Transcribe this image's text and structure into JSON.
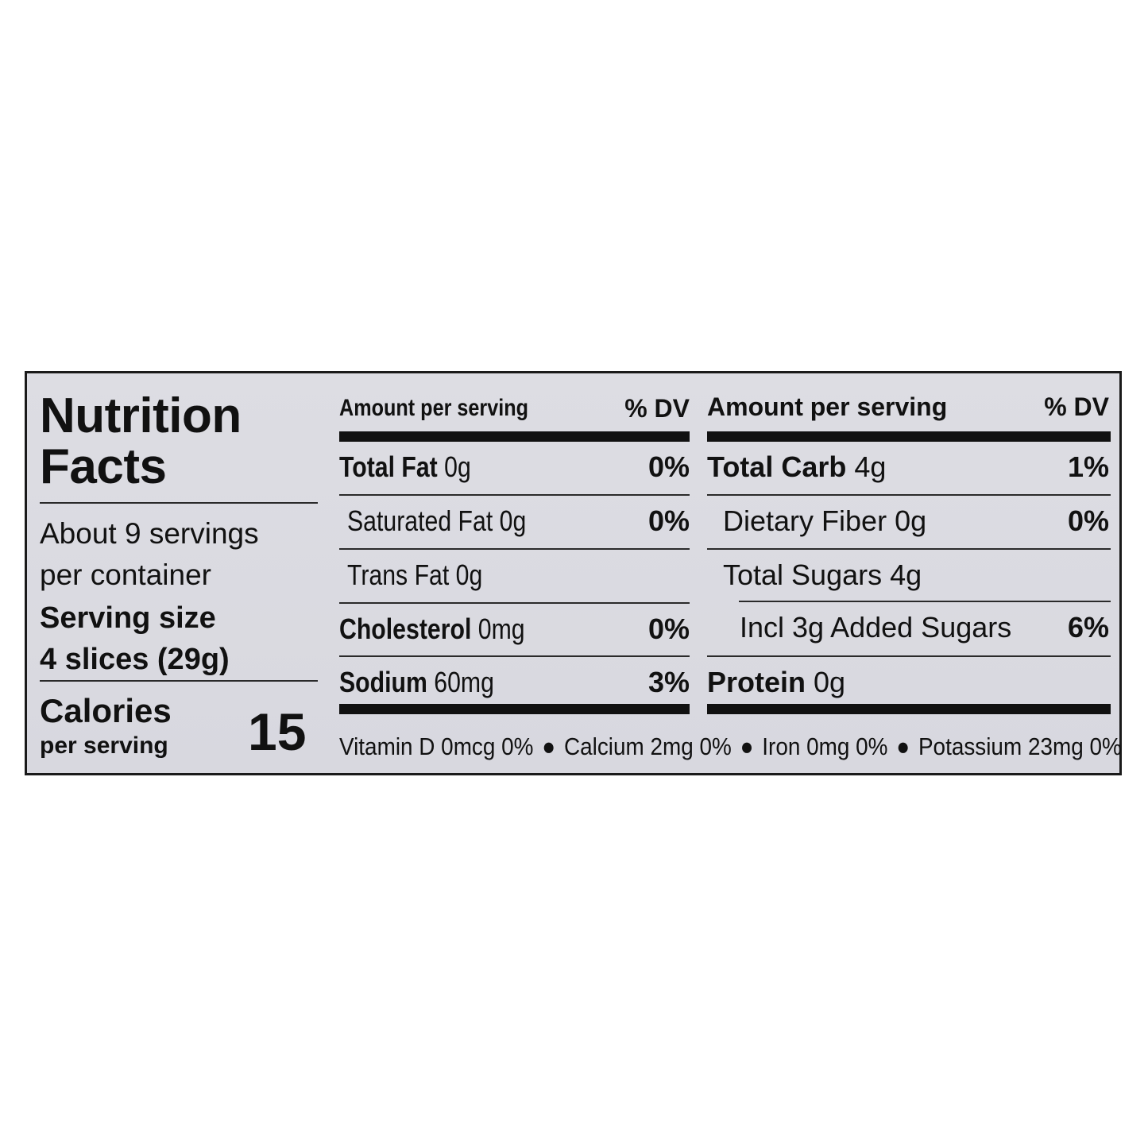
{
  "title": {
    "line1": "Nutrition",
    "line2": "Facts"
  },
  "servings": {
    "line1": "About 9 servings",
    "line2": "per container"
  },
  "serving_size": {
    "line1": "Serving size",
    "line2": "4 slices (29g)"
  },
  "calories": {
    "label": "Calories",
    "sub": "per serving",
    "value": "15"
  },
  "left_column": {
    "header_amount": "Amount per serving",
    "header_dv": "% DV",
    "rows": [
      {
        "name": "Total Fat",
        "amount": "0g",
        "dv": "0%"
      },
      {
        "name": "Saturated Fat",
        "amount": "0g",
        "dv": "0%"
      },
      {
        "name": "Trans Fat",
        "amount": "0g",
        "dv": ""
      },
      {
        "name": "Cholesterol",
        "amount": "0mg",
        "dv": "0%"
      },
      {
        "name": "Sodium",
        "amount": "60mg",
        "dv": "3%"
      }
    ]
  },
  "right_column": {
    "header_amount": "Amount per serving",
    "header_dv": "% DV",
    "rows": [
      {
        "name": "Total Carb",
        "amount": "4g",
        "dv": "1%"
      },
      {
        "name": "Dietary Fiber",
        "amount": "0g",
        "dv": "0%"
      },
      {
        "name": "Total Sugars",
        "amount": "4g",
        "dv": ""
      },
      {
        "name": "Incl 3g Added Sugars",
        "amount": "",
        "dv": "6%"
      },
      {
        "name": "Protein",
        "amount": "0g",
        "dv": ""
      }
    ]
  },
  "footer": {
    "vitamin_d": "Vitamin D 0mcg 0%",
    "calcium": "Calcium 2mg 0%",
    "iron": "Iron 0mg 0%",
    "potassium": "Potassium 23mg 0%",
    "separator": "●"
  }
}
